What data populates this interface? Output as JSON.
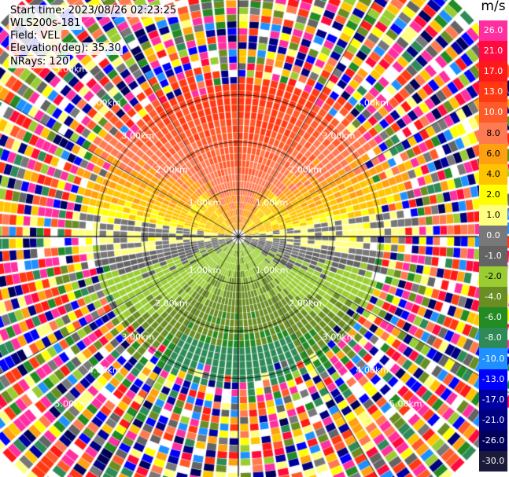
{
  "header": {
    "start_time": "Start time: 2023/08/26 02:23:25",
    "instrument": "WLS200s-181",
    "field": "Field: VEL",
    "elevation": "Elevation(deg): 35.30",
    "nrays": "NRays: 120"
  },
  "chart_data": {
    "type": "heatmap",
    "projection": "polar-ppi",
    "rays": 120,
    "max_range_km": 6.9,
    "range_ring_labels": [
      "1.00km",
      "2.00km",
      "3.00km",
      "4.00km",
      "5.00km"
    ],
    "colorbar": {
      "unit": "m/s",
      "tick_labels": [
        "26.0",
        "21.0",
        "17.0",
        "13.0",
        "10.0",
        "8.0",
        "6.0",
        "4.0",
        "2.0",
        "1.0",
        "0.0",
        "-1.0",
        "-2.0",
        "-4.0",
        "-6.0",
        "-8.0",
        "-10.0",
        "-13.0",
        "-17.0",
        "-21.0",
        "-26.0",
        "-30.0"
      ],
      "colors": [
        "#ff2fa0",
        "#ff0b3f",
        "#ff1a1a",
        "#ff3a12",
        "#ff5a2a",
        "#ff7a50",
        "#ffa010",
        "#ffc400",
        "#ffff00",
        "#ffff80",
        "#787878",
        "#646464",
        "#9acd32",
        "#6b8e23",
        "#228b22",
        "#2e8b57",
        "#1e90ff",
        "#0000ff",
        "#0000a0",
        "#000080",
        "#00005a",
        "#1a1a3a"
      ]
    },
    "velocity_pattern": {
      "near_field_north": 8.0,
      "near_field_south": -6.0,
      "south_far": -10.0,
      "east_west_near_zero": 0.0,
      "clean_data_range_km": 3.1,
      "noise_beyond": true
    }
  }
}
